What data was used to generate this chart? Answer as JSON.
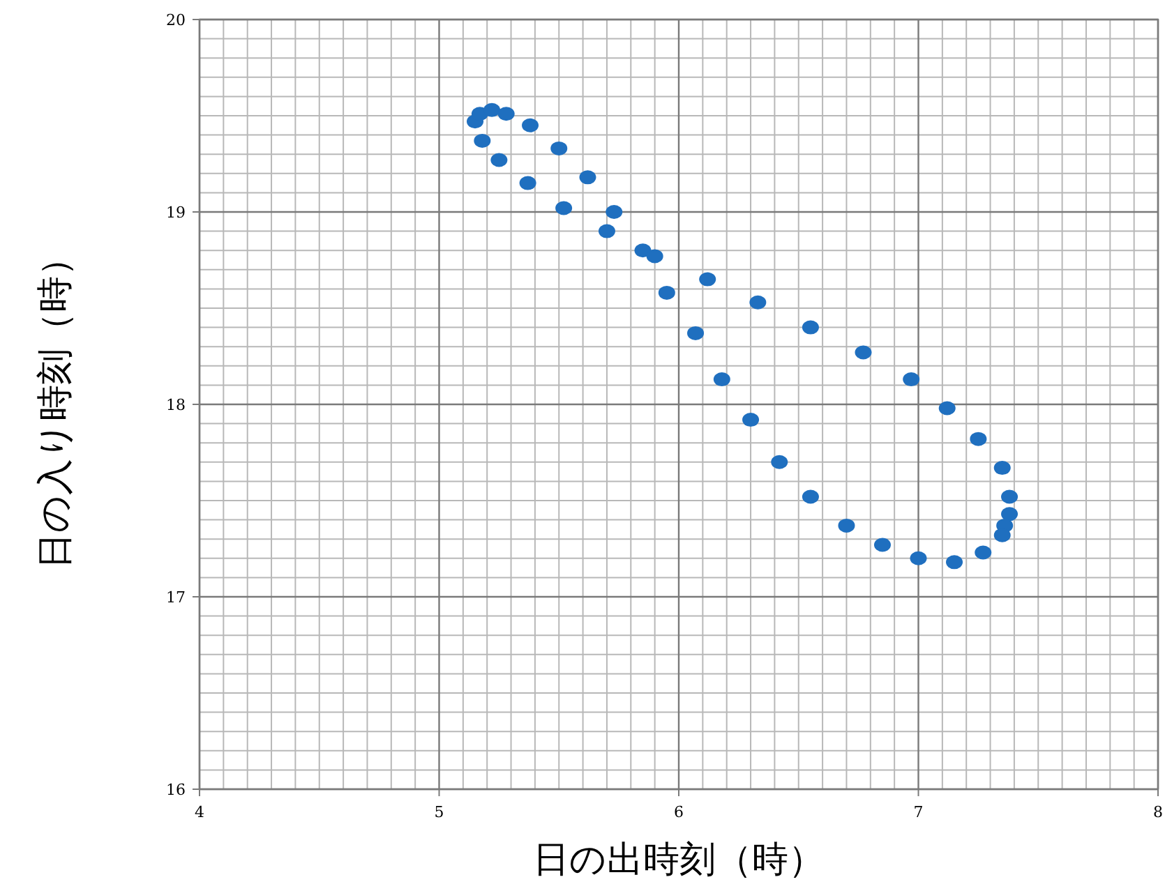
{
  "chart_data": {
    "type": "scatter",
    "xlabel": "日の出時刻（時）",
    "ylabel": "日の入り時刻（時）",
    "xlim": [
      4,
      8
    ],
    "ylim": [
      16,
      20
    ],
    "xticks": [
      4,
      5,
      6,
      7,
      8
    ],
    "yticks": [
      16,
      17,
      18,
      19,
      20
    ],
    "grid": true,
    "marker": "circle",
    "series": [
      {
        "color": "#1f6fbf",
        "x": [
          5.15,
          5.17,
          5.22,
          5.28,
          5.18,
          5.38,
          5.25,
          5.5,
          5.37,
          5.62,
          5.52,
          5.73,
          5.7,
          5.85,
          5.9,
          5.95,
          6.12,
          6.07,
          6.33,
          6.18,
          6.55,
          6.3,
          6.77,
          6.42,
          6.97,
          6.55,
          7.12,
          6.7,
          7.25,
          6.85,
          7.35,
          7.0,
          7.38,
          7.15,
          7.38,
          7.27,
          7.36,
          7.35
        ],
        "values": [
          19.47,
          19.51,
          19.53,
          19.51,
          19.37,
          19.45,
          19.27,
          19.33,
          19.15,
          19.18,
          19.02,
          19.0,
          18.9,
          18.8,
          18.77,
          18.58,
          18.65,
          18.37,
          18.53,
          18.13,
          18.4,
          17.92,
          18.27,
          17.7,
          18.13,
          17.52,
          17.98,
          17.37,
          17.82,
          17.27,
          17.67,
          17.2,
          17.52,
          17.18,
          17.43,
          17.23,
          17.37,
          17.32
        ]
      }
    ]
  }
}
